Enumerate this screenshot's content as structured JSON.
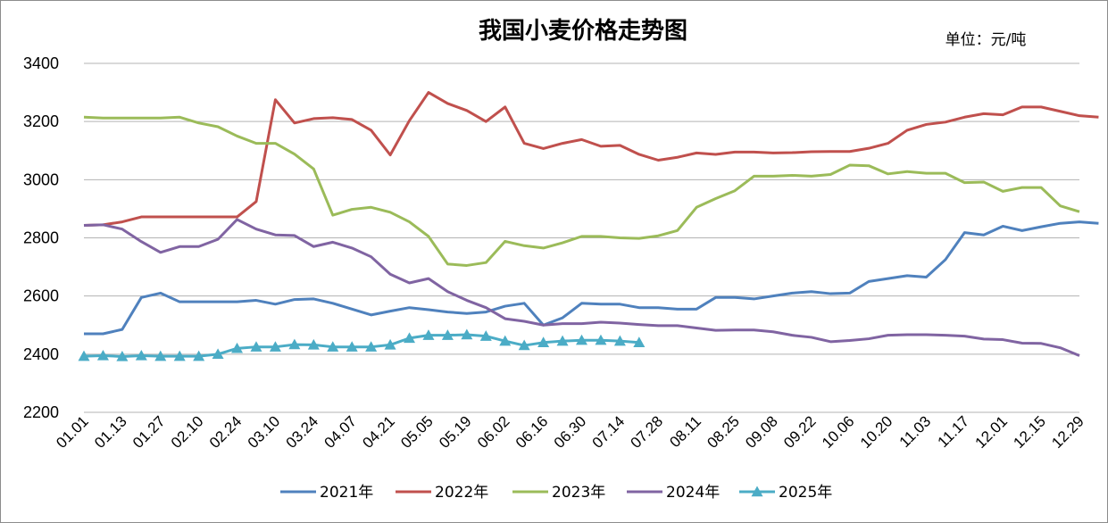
{
  "chart_data": {
    "type": "line",
    "title": "我国小麦价格走势图",
    "unit_label": "单位：元/吨",
    "xlabel": "",
    "ylabel": "",
    "ylim": [
      2200,
      3400
    ],
    "yticks": [
      2200,
      2400,
      2600,
      2800,
      3000,
      3200,
      3400
    ],
    "grid": true,
    "legend_position": "bottom",
    "x_tick_labels": [
      "01.01",
      "01.13",
      "01.27",
      "02.10",
      "02.24",
      "03.10",
      "03.24",
      "04.07",
      "04.21",
      "05.05",
      "05.19",
      "06.02",
      "06.16",
      "06.30",
      "07.14",
      "07.28",
      "08.11",
      "08.25",
      "09.08",
      "09.22",
      "10.06",
      "10.20",
      "11.03",
      "11.17",
      "12.01",
      "12.15",
      "12.29"
    ],
    "series": [
      {
        "name": "2021年",
        "color": "#4f81bd",
        "marker": "none",
        "values": [
          2470,
          2470,
          2485,
          2595,
          2610,
          2580,
          2580,
          2580,
          2580,
          2585,
          2572,
          2588,
          2590,
          2575,
          2555,
          2535,
          2548,
          2560,
          2553,
          2545,
          2540,
          2545,
          2565,
          2575,
          2500,
          2525,
          2575,
          2572,
          2572,
          2560,
          2560,
          2555,
          2555,
          2595,
          2595,
          2590,
          2600,
          2610,
          2615,
          2608,
          2610,
          2650,
          2660,
          2670,
          2665,
          2725,
          2818,
          2810,
          2840,
          2825,
          2838,
          2850,
          2855,
          2850
        ]
      },
      {
        "name": "2022年",
        "color": "#c0504d",
        "marker": "none",
        "values": [
          2843,
          2845,
          2855,
          2872,
          2872,
          2872,
          2872,
          2872,
          2872,
          2925,
          3275,
          3195,
          3210,
          3213,
          3207,
          3170,
          3085,
          3203,
          3300,
          3262,
          3238,
          3200,
          3250,
          3125,
          3107,
          3125,
          3138,
          3115,
          3118,
          3087,
          3067,
          3077,
          3092,
          3087,
          3095,
          3095,
          3092,
          3093,
          3096,
          3097,
          3097,
          3108,
          3125,
          3170,
          3190,
          3198,
          3215,
          3227,
          3223,
          3250,
          3250,
          3235,
          3220,
          3215
        ]
      },
      {
        "name": "2023年",
        "color": "#9bbb59",
        "marker": "none",
        "values": [
          3215,
          3212,
          3212,
          3212,
          3212,
          3215,
          3195,
          3182,
          3150,
          3125,
          3125,
          3088,
          3037,
          2878,
          2898,
          2905,
          2888,
          2855,
          2805,
          2710,
          2705,
          2715,
          2788,
          2773,
          2765,
          2783,
          2805,
          2805,
          2800,
          2798,
          2807,
          2825,
          2905,
          2935,
          2962,
          3012,
          3012,
          3015,
          3012,
          3018,
          3050,
          3048,
          3020,
          3028,
          3022,
          3022,
          2990,
          2992,
          2960,
          2973,
          2973,
          2910,
          2890
        ]
      },
      {
        "name": "2024年",
        "color": "#8064a2",
        "marker": "none",
        "values": [
          2843,
          2845,
          2830,
          2787,
          2750,
          2770,
          2770,
          2795,
          2863,
          2830,
          2810,
          2808,
          2770,
          2785,
          2765,
          2735,
          2675,
          2645,
          2660,
          2615,
          2585,
          2560,
          2522,
          2513,
          2500,
          2505,
          2505,
          2510,
          2507,
          2502,
          2498,
          2498,
          2490,
          2482,
          2483,
          2483,
          2477,
          2465,
          2458,
          2443,
          2447,
          2453,
          2465,
          2467,
          2467,
          2465,
          2462,
          2452,
          2450,
          2438,
          2437,
          2422,
          2395
        ]
      },
      {
        "name": "2025年",
        "color": "#4bacc6",
        "marker": "triangle",
        "values": [
          2393,
          2395,
          2392,
          2395,
          2393,
          2393,
          2393,
          2400,
          2420,
          2425,
          2425,
          2433,
          2432,
          2425,
          2425,
          2425,
          2432,
          2455,
          2465,
          2465,
          2467,
          2462,
          2445,
          2430,
          2440,
          2445,
          2448,
          2448,
          2445,
          2440
        ]
      }
    ]
  }
}
